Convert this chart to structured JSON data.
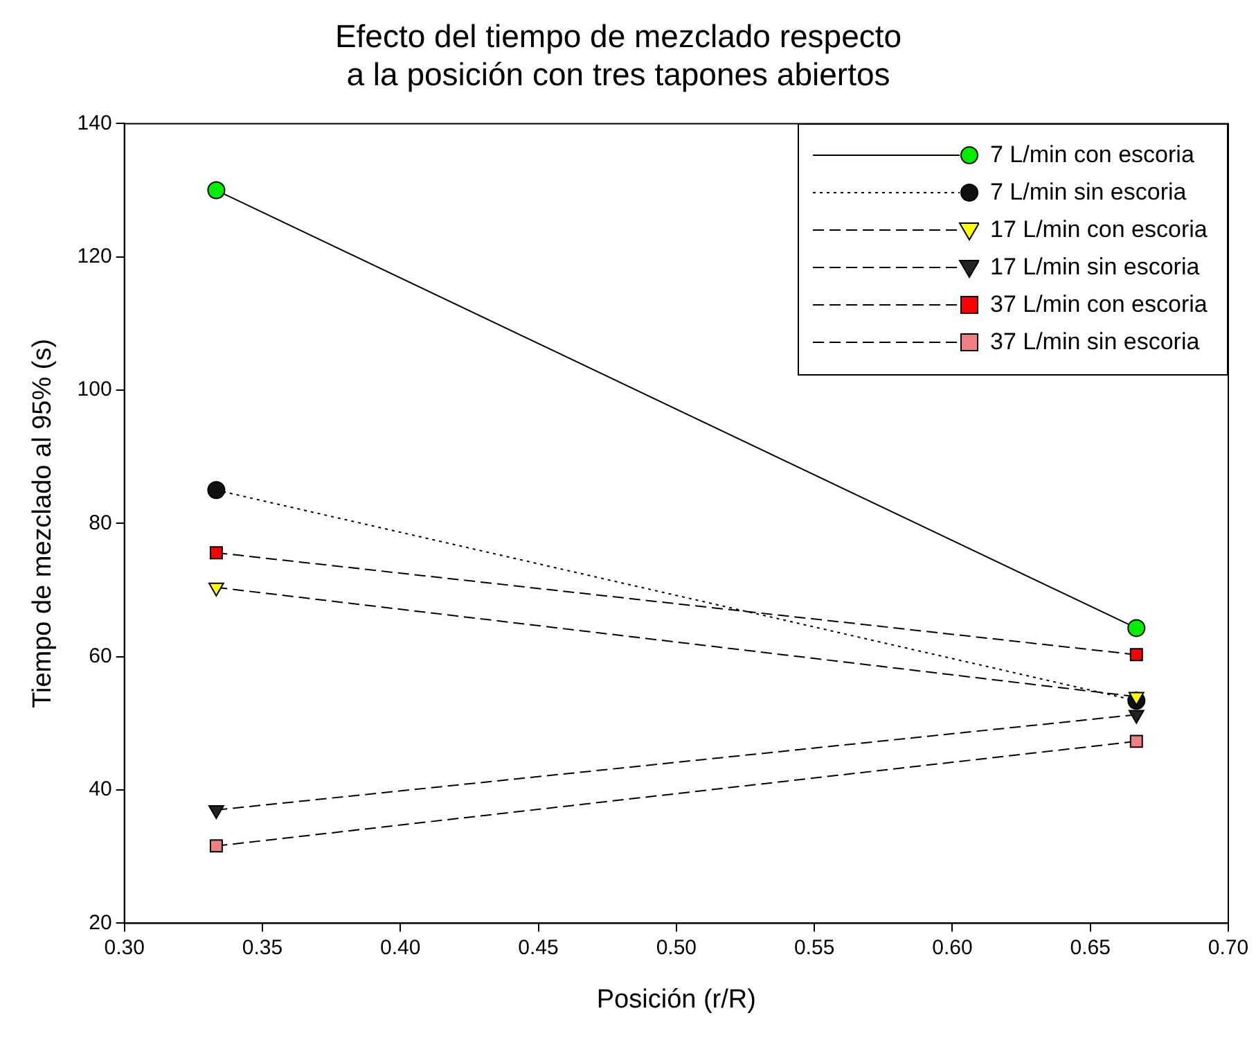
{
  "chart_data": {
    "type": "line",
    "title": "Efecto del tiempo de mezclado respecto\na la posición con tres tapones abiertos",
    "xlabel": "Posición (r/R)",
    "ylabel": "Tiempo de mezclado al 95% (s)",
    "x": [
      0.3333,
      0.6667
    ],
    "series": [
      {
        "name": "7 L/min con escoria",
        "color": "#00ee00",
        "marker": "circle",
        "line_style": "solid",
        "values": [
          130,
          64.3
        ]
      },
      {
        "name": "7 L/min sin escoria",
        "color": "#111111",
        "marker": "circle",
        "line_style": "dotted",
        "values": [
          85,
          53.4
        ]
      },
      {
        "name": "17 L/min con escoria",
        "color": "#ffff00",
        "marker": "triangle",
        "line_style": "dashed",
        "values": [
          70.4,
          54
        ]
      },
      {
        "name": "17 L/min sin escoria",
        "color": "#222222",
        "marker": "triangle",
        "line_style": "dashed",
        "values": [
          37,
          51.3
        ]
      },
      {
        "name": "37 L/min con escoria",
        "color": "#ff0000",
        "marker": "square",
        "line_style": "dashed",
        "values": [
          75.6,
          60.3
        ]
      },
      {
        "name": "37 L/min sin escoria",
        "color": "#f08080",
        "marker": "square",
        "line_style": "dashed",
        "values": [
          31.6,
          47.3
        ]
      }
    ],
    "xlim": [
      0.3,
      0.7
    ],
    "xticks": [
      {
        "value": 0.3,
        "label": "0.30"
      },
      {
        "value": 0.35,
        "label": "0.35"
      },
      {
        "value": 0.4,
        "label": "0.40"
      },
      {
        "value": 0.45,
        "label": "0.45"
      },
      {
        "value": 0.5,
        "label": "0.50"
      },
      {
        "value": 0.55,
        "label": "0.55"
      },
      {
        "value": 0.6,
        "label": "0.60"
      },
      {
        "value": 0.65,
        "label": "0.65"
      },
      {
        "value": 0.7,
        "label": "0.70"
      }
    ],
    "ylim": [
      20,
      140
    ],
    "yticks": [
      20,
      40,
      60,
      80,
      100,
      120,
      140
    ],
    "grid": false,
    "legend": "top right"
  }
}
